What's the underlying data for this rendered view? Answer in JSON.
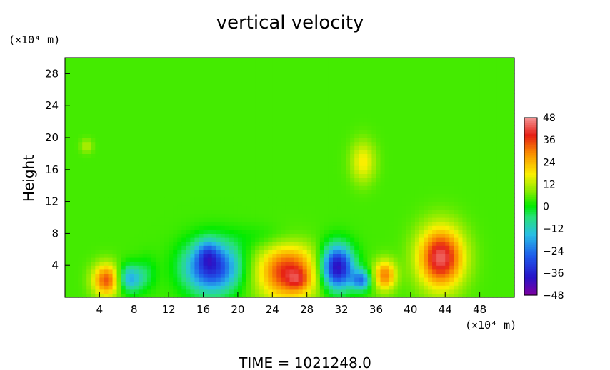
{
  "chart_data": {
    "type": "heatmap",
    "title": "vertical velocity",
    "ylabel": "Height",
    "y_unit_label": "(×10⁴ m)",
    "x_unit_label": "(×10⁴ m)",
    "xlim": [
      0,
      52
    ],
    "ylim": [
      0,
      30
    ],
    "x_ticks": [
      4,
      8,
      12,
      16,
      20,
      24,
      28,
      32,
      36,
      40,
      44,
      48
    ],
    "y_ticks": [
      4,
      8,
      12,
      16,
      20,
      24,
      28
    ],
    "colorbar": {
      "range": [
        -48,
        48
      ],
      "ticks": [
        48,
        36,
        24,
        12,
        0,
        -12,
        -24,
        -36,
        -48
      ]
    },
    "background_value": 4,
    "features": [
      {
        "x": 4.8,
        "y": 2.2,
        "sx": 1.1,
        "sy": 1.4,
        "value": 30
      },
      {
        "x": 7.5,
        "y": 2.4,
        "sx": 1.0,
        "sy": 1.2,
        "value": -22
      },
      {
        "x": 17.0,
        "y": 3.8,
        "sx": 2.2,
        "sy": 2.2,
        "value": -38
      },
      {
        "x": 16.5,
        "y": 5.5,
        "sx": 0.8,
        "sy": 1.2,
        "value": -12
      },
      {
        "x": 25.8,
        "y": 3.2,
        "sx": 2.4,
        "sy": 2.4,
        "value": 34
      },
      {
        "x": 27.0,
        "y": 2.2,
        "sx": 0.9,
        "sy": 0.9,
        "value": 10
      },
      {
        "x": 31.5,
        "y": 3.8,
        "sx": 1.3,
        "sy": 1.9,
        "value": -46
      },
      {
        "x": 34.3,
        "y": 2.2,
        "sx": 0.8,
        "sy": 0.9,
        "value": -26
      },
      {
        "x": 37.0,
        "y": 2.8,
        "sx": 0.9,
        "sy": 1.3,
        "value": 26
      },
      {
        "x": 43.5,
        "y": 5.0,
        "sx": 1.8,
        "sy": 2.6,
        "value": 40
      },
      {
        "x": 23.5,
        "y": 7.5,
        "sx": 3.0,
        "sy": 1.2,
        "value": -4
      },
      {
        "x": 34.5,
        "y": 17.0,
        "sx": 1.0,
        "sy": 1.8,
        "value": 14
      },
      {
        "x": 2.5,
        "y": 19.0,
        "sx": 0.5,
        "sy": 0.6,
        "value": 8
      },
      {
        "x": 9.5,
        "y": 3.0,
        "sx": 0.8,
        "sy": 1.5,
        "value": -6
      }
    ]
  },
  "footer": {
    "label": "TIME  =  1021248.0"
  }
}
